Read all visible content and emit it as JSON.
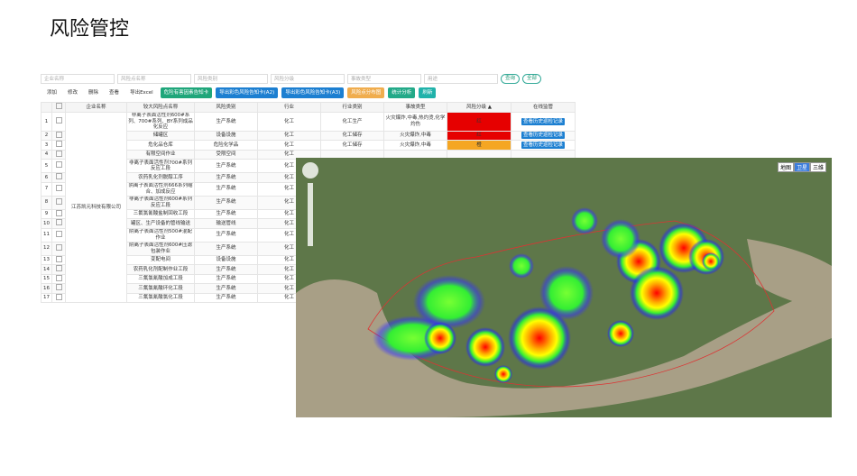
{
  "header": {
    "title": "风险管控"
  },
  "filters": [
    "企业名称",
    "风险点名称",
    "风险类别",
    "风险分级",
    "事故类型",
    "用途"
  ],
  "filter_buttons": [
    "查询",
    "全部"
  ],
  "toolbar": [
    "添加",
    "修改",
    "删除",
    "查看",
    "导出Excel",
    "危险有害因素告知卡",
    "导出彩色风险告知卡(A2)",
    "导出彩色风险告知卡(A3)",
    "风险点分布图",
    "统计分析",
    "刷新"
  ],
  "table": {
    "columns": [
      "企业名称",
      "较大风险点名称",
      "风险类别",
      "行业",
      "行业类别",
      "事故类型",
      "风险分级 ▲",
      "在线监管"
    ],
    "company": "江苏凯元科技有限公司",
    "rows": [
      {
        "no": 1,
        "cells": [
          "非离子表面活性剂600#系列、700#系列、BY系列成品化反应",
          "生产系统",
          "化工",
          "化工生产",
          "火灾爆炸,中毒,热灼烫,化学灼伤",
          "红",
          "查看历史巡检记录"
        ],
        "level_color": "#e60000"
      },
      {
        "no": 2,
        "cells": [
          "储罐区",
          "设备设施",
          "化工",
          "化工储存",
          "火灾爆炸,中毒",
          "红",
          "查看历史巡检记录"
        ],
        "level_color": "#e60000"
      },
      {
        "no": 3,
        "cells": [
          "危化品仓库",
          "危险化学品",
          "化工",
          "化工储存",
          "火灾爆炸,中毒",
          "橙",
          "查看历史巡检记录"
        ],
        "level_color": "#f5a623"
      },
      {
        "no": 4,
        "cells": [
          "有限空间作业",
          "受限空间",
          "化工"
        ]
      },
      {
        "no": 5,
        "cells": [
          "非离子表面活性剂700#系列反应工段",
          "生产系统",
          "化工"
        ]
      },
      {
        "no": 6,
        "cells": [
          "农药乳化剂脱醇工序",
          "生产系统",
          "化工"
        ]
      },
      {
        "no": 7,
        "cells": [
          "阴离子表面活性剂666系列缩合、加成反应",
          "生产系统",
          "化工"
        ]
      },
      {
        "no": 8,
        "cells": [
          "非离子表面活性剂600#系列反应工段",
          "生产系统",
          "化工"
        ]
      },
      {
        "no": 9,
        "cells": [
          "三氟氯氰酸盐制回收工段",
          "生产系统",
          "化工"
        ]
      },
      {
        "no": 10,
        "cells": [
          "罐区、生产设备的管线输送",
          "输送管线",
          "化工"
        ]
      },
      {
        "no": 11,
        "cells": [
          "阴离子表面活性剂500#混配作业",
          "生产系统",
          "化工"
        ]
      },
      {
        "no": 12,
        "cells": [
          "阴离子表面活性剂600#压滤包装作业",
          "生产系统",
          "化工"
        ]
      },
      {
        "no": 13,
        "cells": [
          "变配电间",
          "设备设施",
          "化工"
        ]
      },
      {
        "no": 14,
        "cells": [
          "农药乳化剂配制作业工段",
          "生产系统",
          "化工"
        ]
      },
      {
        "no": 15,
        "cells": [
          "三氟氯氰酸加成工段",
          "生产系统",
          "化工"
        ]
      },
      {
        "no": 16,
        "cells": [
          "三氟氯氰酸环化工段",
          "生产系统",
          "化工"
        ]
      },
      {
        "no": 17,
        "cells": [
          "三氟氯氰酸氯化工段",
          "生产系统",
          "化工"
        ]
      }
    ]
  },
  "map": {
    "layers": [
      "地图",
      "卫星",
      "三维"
    ]
  }
}
